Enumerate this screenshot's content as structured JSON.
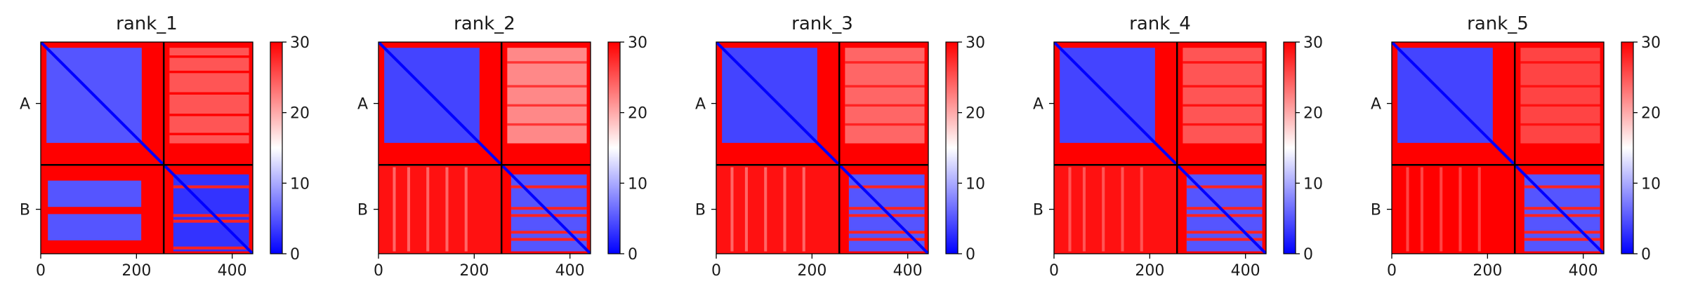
{
  "chart_data": {
    "type": "heatmap",
    "description_free": true,
    "colormap": {
      "low": "#0000ff",
      "mid": "#ffffff",
      "high": "#ff0000"
    },
    "color_range": [
      0,
      30
    ],
    "colorbar_ticks": [
      0,
      10,
      20,
      30
    ],
    "x_ticks": [
      0,
      200,
      400
    ],
    "x_range": [
      0,
      443
    ],
    "chain_boundary": 257,
    "chains": [
      "A",
      "B"
    ],
    "panels": [
      {
        "title": "rank_1",
        "blocks": {
          "AA": {
            "domain": [
              12,
              211
            ],
            "in_domain": 5,
            "out_domain": 30
          },
          "AB": {
            "value": 25,
            "stripe_value": 30,
            "stripe_rows": [
              28,
              60,
              105,
              150,
              190
            ]
          },
          "BA": {
            "value": 30,
            "inner_value": 5,
            "inner": [
              [
                290,
                345
              ],
              [
                360,
                415
              ]
            ],
            "inner_cols": [
              [
                15,
                210
              ]
            ]
          },
          "BB": {
            "value": 3,
            "stripe_value": 28,
            "stripe_rows": [
              300,
              360,
              372,
              428
            ]
          }
        }
      },
      {
        "title": "rank_2",
        "blocks": {
          "AA": {
            "domain": [
              12,
              211
            ],
            "in_domain": 4,
            "out_domain": 30
          },
          "AB": {
            "value": 22,
            "stripe_value": 27,
            "stripe_rows": [
              40,
              90,
              130,
              170
            ]
          },
          "BA": {
            "value": 29,
            "stripe_value": 24,
            "stripe_cols": [
              30,
              60,
              100,
              140,
              180
            ]
          },
          "BB": {
            "value": 5,
            "stripe_value": 28,
            "stripe_rows": [
              300,
              345,
              360,
              395,
              410
            ]
          }
        }
      },
      {
        "title": "rank_3",
        "blocks": {
          "AA": {
            "domain": [
              12,
              211
            ],
            "in_domain": 4,
            "out_domain": 30
          },
          "AB": {
            "value": 24,
            "stripe_value": 28,
            "stripe_rows": [
              40,
              90,
              130,
              170
            ]
          },
          "BA": {
            "value": 29,
            "stripe_value": 24,
            "stripe_cols": [
              30,
              60,
              100,
              140,
              180
            ]
          },
          "BB": {
            "value": 5,
            "stripe_value": 28,
            "stripe_rows": [
              300,
              345,
              360,
              395,
              410
            ]
          }
        }
      },
      {
        "title": "rank_4",
        "blocks": {
          "AA": {
            "domain": [
              12,
              211
            ],
            "in_domain": 4,
            "out_domain": 30
          },
          "AB": {
            "value": 25,
            "stripe_value": 29,
            "stripe_rows": [
              40,
              90,
              130,
              170
            ]
          },
          "BA": {
            "value": 29,
            "stripe_value": 25,
            "stripe_cols": [
              30,
              60,
              100,
              140,
              180
            ]
          },
          "BB": {
            "value": 5,
            "stripe_value": 28,
            "stripe_rows": [
              300,
              345,
              360,
              395,
              410
            ]
          }
        }
      },
      {
        "title": "rank_5",
        "blocks": {
          "AA": {
            "domain": [
              12,
              211
            ],
            "in_domain": 4,
            "out_domain": 30
          },
          "AB": {
            "value": 26,
            "stripe_value": 29,
            "stripe_rows": [
              40,
              90,
              130,
              170
            ]
          },
          "BA": {
            "value": 30,
            "stripe_value": 26,
            "stripe_cols": [
              30,
              60,
              100,
              140,
              180
            ]
          },
          "BB": {
            "value": 5,
            "stripe_value": 28,
            "stripe_rows": [
              300,
              345,
              360,
              395,
              410
            ]
          }
        }
      }
    ]
  }
}
